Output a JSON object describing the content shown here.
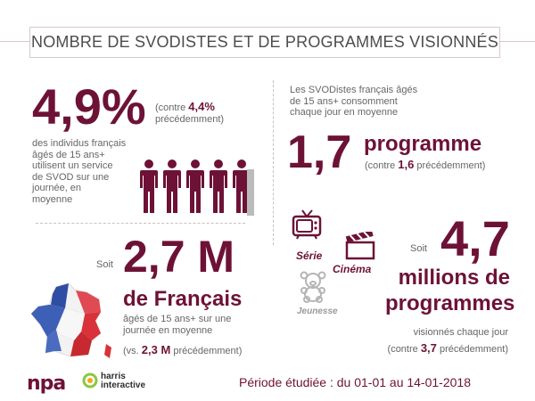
{
  "title": "NOMBRE DE SVODISTES ET DE PROGRAMMES VISIONNÉS",
  "left_top": {
    "big_value": "4,9%",
    "compare_open": "(contre ",
    "compare_value": "4,4%",
    "compare_close": "précédemment)",
    "description_lines": [
      "des individus français",
      "âgés de 15 ans+",
      "utilisent un service",
      "de SVOD sur une",
      "journée, en",
      "moyenne"
    ]
  },
  "right_top": {
    "intro_lines": [
      "Les SVODistes français âgés",
      "de 15 ans+ consomment",
      "chaque jour en moyenne"
    ],
    "big_value": "1,7",
    "unit": "programme",
    "compare_open": "(contre ",
    "compare_value": "1,6",
    "compare_close": " précédemment)"
  },
  "left_bottom": {
    "prefix": "Soit",
    "big_value": "2,7 M",
    "unit": "de Français",
    "description_lines": [
      "âgés de 15 ans+ sur une",
      "journée en moyenne"
    ],
    "compare_open": "(vs. ",
    "compare_value": "2,3 M",
    "compare_close": " précédemment)"
  },
  "right_bottom": {
    "prefix": "Soit",
    "big_value": "4,7",
    "unit_lines": [
      "millions de",
      "programmes"
    ],
    "description": "visionnés chaque jour",
    "compare_open": "(contre ",
    "compare_value": "3,7",
    "compare_close": " précédemment)",
    "icons": {
      "serie_label": "Série",
      "cinema_label": "Cinéma",
      "jeunesse_label": "Jeunesse"
    }
  },
  "footer": {
    "period": "Période étudiée : du 01-01 au 14-01-2018",
    "logo_npa": "npa",
    "logo_harris_line1": "harris",
    "logo_harris_line2": "interactive"
  },
  "colors": {
    "accent": "#6d1236",
    "text": "#666666",
    "france_blue": "#2f4ea3",
    "france_red": "#d9323a"
  }
}
